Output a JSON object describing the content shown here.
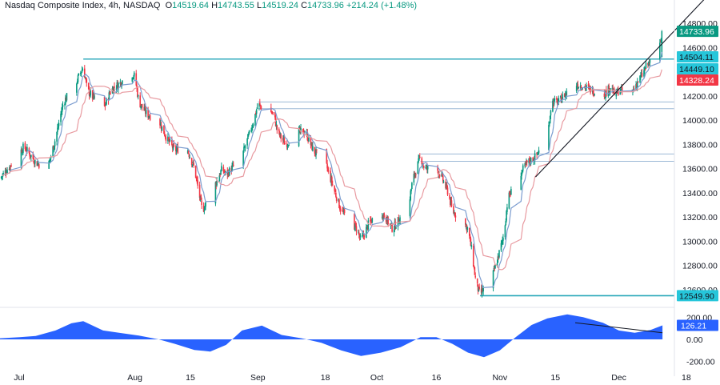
{
  "header": {
    "symbol": "Nasdaq Composite Index, 4h, NASDAQ",
    "o_label": "O",
    "o": "14519.64",
    "h_label": "H",
    "h": "14743.55",
    "l_label": "L",
    "l": "14519.24",
    "c_label": "C",
    "c": "14733.96",
    "change": "+214.24 (+1.48%)"
  },
  "colors": {
    "up": "#089981",
    "down": "#f23645",
    "fast_ma": "#7b9ccf",
    "slow_ma": "#e89aa0",
    "level_line": "#26a6b8",
    "zone_line": "#9bb8d6",
    "oscillator": "#2962ff",
    "trendline": "#131722",
    "price_tag": "#089981",
    "res_tag": "#26c6da",
    "ma_tag": "#f23645"
  },
  "chart_data": [
    {
      "type": "candlestick",
      "title": "Nasdaq Composite Index, 4h, NASDAQ",
      "y_ticks": [
        "14800.00",
        "14600.00",
        "14400.00",
        "14200.00",
        "14000.00",
        "13800.00",
        "13600.00",
        "13400.00",
        "13200.00",
        "13000.00",
        "12800.00",
        "12600.00"
      ],
      "ylim": [
        12480,
        14860
      ],
      "x_ticks": [
        "Jul",
        "Aug",
        "15",
        "Sep",
        "18",
        "Oct",
        "16",
        "Nov",
        "15",
        "Dec",
        "18"
      ],
      "price_labels": {
        "last": "14733.96",
        "resistance": "14504.11",
        "fast_ma": "14449.10",
        "slow_ma": "14328.24",
        "support": "12549.90"
      },
      "horizontal_levels": [
        {
          "value": 14504.11,
          "type": "resistance"
        },
        {
          "value": 12549.9,
          "type": "support"
        },
        {
          "value": 14150,
          "type": "zone"
        },
        {
          "value": 14095,
          "type": "zone"
        },
        {
          "value": 13720,
          "type": "zone"
        },
        {
          "value": 13660,
          "type": "zone"
        }
      ],
      "trendline": {
        "from": {
          "x": "2023-11-10",
          "y": 13530
        },
        "to": {
          "x": "2023-12-11",
          "y": 14600
        }
      },
      "path_points": [
        [
          "2023-06-28",
          13520
        ],
        [
          "2023-06-30",
          13600
        ],
        [
          "2023-07-04",
          13780
        ],
        [
          "2023-07-06",
          13700
        ],
        [
          "2023-07-07",
          13650
        ],
        [
          "2023-07-10",
          13600
        ],
        [
          "2023-07-12",
          13850
        ],
        [
          "2023-07-14",
          14150
        ],
        [
          "2023-07-17",
          14300
        ],
        [
          "2023-07-19",
          14440
        ],
        [
          "2023-07-20",
          14250
        ],
        [
          "2023-07-24",
          14080
        ],
        [
          "2023-07-26",
          14250
        ],
        [
          "2023-07-28",
          14300
        ],
        [
          "2023-07-31",
          14390
        ],
        [
          "2023-08-01",
          14360
        ],
        [
          "2023-08-02",
          14150
        ],
        [
          "2023-08-04",
          14050
        ],
        [
          "2023-08-07",
          14000
        ],
        [
          "2023-08-09",
          13850
        ],
        [
          "2023-08-11",
          13750
        ],
        [
          "2023-08-14",
          13780
        ],
        [
          "2023-08-16",
          13600
        ],
        [
          "2023-08-18",
          13250
        ],
        [
          "2023-08-21",
          13450
        ],
        [
          "2023-08-23",
          13600
        ],
        [
          "2023-08-24",
          13550
        ],
        [
          "2023-08-28",
          13700
        ],
        [
          "2023-08-31",
          14000
        ],
        [
          "2023-09-01",
          14130
        ],
        [
          "2023-09-05",
          14050
        ],
        [
          "2023-09-06",
          13900
        ],
        [
          "2023-09-08",
          13800
        ],
        [
          "2023-09-11",
          13900
        ],
        [
          "2023-09-13",
          13900
        ],
        [
          "2023-09-15",
          13750
        ],
        [
          "2023-09-18",
          13650
        ],
        [
          "2023-09-20",
          13450
        ],
        [
          "2023-09-22",
          13250
        ],
        [
          "2023-09-26",
          13100
        ],
        [
          "2023-09-27",
          13000
        ],
        [
          "2023-09-29",
          13150
        ],
        [
          "2023-10-02",
          13250
        ],
        [
          "2023-10-04",
          13150
        ],
        [
          "2023-10-05",
          13100
        ],
        [
          "2023-10-09",
          13300
        ],
        [
          "2023-10-10",
          13500
        ],
        [
          "2023-10-12",
          13700
        ],
        [
          "2023-10-13",
          13600
        ],
        [
          "2023-10-16",
          13600
        ],
        [
          "2023-10-17",
          13550
        ],
        [
          "2023-10-19",
          13400
        ],
        [
          "2023-10-20",
          13250
        ],
        [
          "2023-10-23",
          13150
        ],
        [
          "2023-10-24",
          13100
        ],
        [
          "2023-10-25",
          12900
        ],
        [
          "2023-10-26",
          12650
        ],
        [
          "2023-10-27",
          12560
        ],
        [
          "2023-10-30",
          12700
        ],
        [
          "2023-10-31",
          12800
        ],
        [
          "2023-11-02",
          13050
        ],
        [
          "2023-11-03",
          13350
        ],
        [
          "2023-11-06",
          13550
        ],
        [
          "2023-11-08",
          13650
        ],
        [
          "2023-11-10",
          13700
        ],
        [
          "2023-11-13",
          13850
        ],
        [
          "2023-11-14",
          14150
        ],
        [
          "2023-11-16",
          14150
        ],
        [
          "2023-11-17",
          14200
        ],
        [
          "2023-11-20",
          14300
        ],
        [
          "2023-11-22",
          14280
        ],
        [
          "2023-11-24",
          14250
        ],
        [
          "2023-11-27",
          14200
        ],
        [
          "2023-11-29",
          14280
        ],
        [
          "2023-11-30",
          14200
        ],
        [
          "2023-12-01",
          14250
        ],
        [
          "2023-12-04",
          14200
        ],
        [
          "2023-12-05",
          14280
        ],
        [
          "2023-12-07",
          14380
        ],
        [
          "2023-12-08",
          14450
        ],
        [
          "2023-12-11",
          14560
        ],
        [
          "2023-12-12",
          14733.96
        ]
      ]
    },
    {
      "type": "area",
      "title": "",
      "y_ticks": [
        "200.00",
        "0.00",
        "-200.00"
      ],
      "ylim": [
        -260,
        260
      ],
      "value_label": "126.21",
      "divergence_line": {
        "from": {
          "x": "2023-11-20",
          "y": 150
        },
        "to": {
          "x": "2023-12-12",
          "y": 60
        }
      },
      "points": [
        [
          "2023-06-28",
          10
        ],
        [
          "2023-07-03",
          20
        ],
        [
          "2023-07-07",
          30
        ],
        [
          "2023-07-12",
          80
        ],
        [
          "2023-07-16",
          145
        ],
        [
          "2023-07-19",
          165
        ],
        [
          "2023-07-24",
          80
        ],
        [
          "2023-07-28",
          60
        ],
        [
          "2023-08-02",
          35
        ],
        [
          "2023-08-07",
          0
        ],
        [
          "2023-08-11",
          -40
        ],
        [
          "2023-08-16",
          -95
        ],
        [
          "2023-08-20",
          -110
        ],
        [
          "2023-08-24",
          -50
        ],
        [
          "2023-08-28",
          80
        ],
        [
          "2023-09-02",
          125
        ],
        [
          "2023-09-07",
          40
        ],
        [
          "2023-09-12",
          10
        ],
        [
          "2023-09-17",
          -30
        ],
        [
          "2023-09-22",
          -100
        ],
        [
          "2023-09-27",
          -150
        ],
        [
          "2023-10-02",
          -120
        ],
        [
          "2023-10-07",
          -70
        ],
        [
          "2023-10-12",
          20
        ],
        [
          "2023-10-16",
          20
        ],
        [
          "2023-10-20",
          -40
        ],
        [
          "2023-10-24",
          -120
        ],
        [
          "2023-10-28",
          -160
        ],
        [
          "2023-11-01",
          -100
        ],
        [
          "2023-11-05",
          20
        ],
        [
          "2023-11-09",
          130
        ],
        [
          "2023-11-13",
          190
        ],
        [
          "2023-11-18",
          225
        ],
        [
          "2023-11-22",
          200
        ],
        [
          "2023-11-27",
          150
        ],
        [
          "2023-12-01",
          80
        ],
        [
          "2023-12-05",
          60
        ],
        [
          "2023-12-09",
          85
        ],
        [
          "2023-12-12",
          126.21
        ]
      ]
    }
  ]
}
